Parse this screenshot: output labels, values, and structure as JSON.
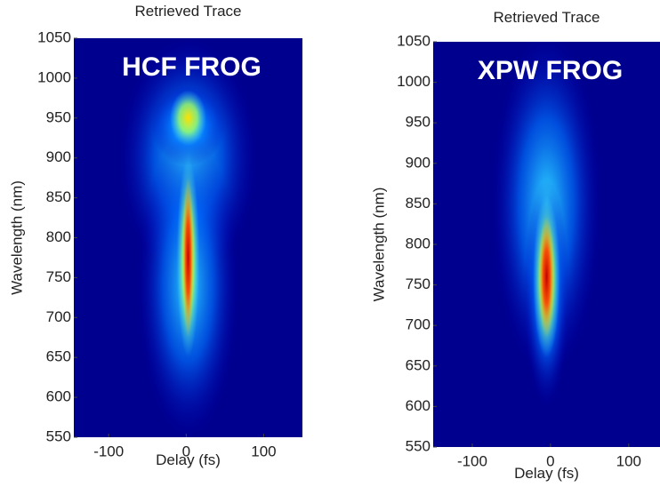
{
  "chart_data": [
    {
      "type": "heatmap",
      "title": "Retrieved Trace",
      "annotation": "HCF FROG",
      "xlabel": "Delay (fs)",
      "ylabel": "Wavelength (nm)",
      "xlim": [
        -145,
        150
      ],
      "ylim": [
        550,
        1050
      ],
      "xticks": [
        -100,
        0,
        100
      ],
      "yticks": [
        550,
        600,
        650,
        700,
        750,
        800,
        850,
        900,
        950,
        1000,
        1050
      ]
    },
    {
      "type": "heatmap",
      "title": "Retrieved Trace",
      "annotation": "XPW FROG",
      "xlabel": "Delay (fs)",
      "ylabel": "Wavelength (nm)",
      "xlim": [
        -150,
        140
      ],
      "ylim": [
        550,
        1050
      ],
      "xticks": [
        -100,
        0,
        100
      ],
      "yticks": [
        550,
        600,
        650,
        700,
        750,
        800,
        850,
        900,
        950,
        1000,
        1050
      ]
    }
  ]
}
